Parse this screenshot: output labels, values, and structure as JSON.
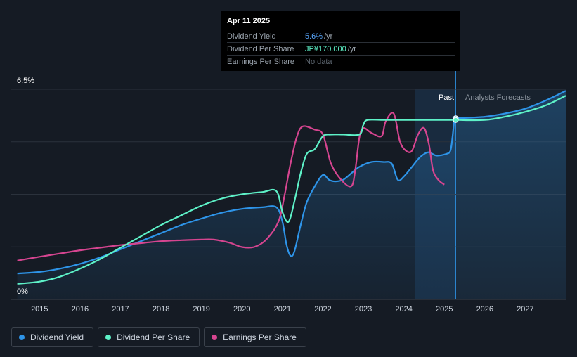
{
  "tooltip": {
    "date": "Apr 11 2025",
    "rows": [
      {
        "label": "Dividend Yield",
        "value": "5.6%",
        "unit": "/yr"
      },
      {
        "label": "Dividend Per Share",
        "value": "JP¥170.000",
        "unit": "/yr"
      },
      {
        "label": "Earnings Per Share",
        "value": "No data",
        "unit": ""
      }
    ]
  },
  "regions": {
    "past_label": "Past",
    "forecast_label": "Analysts Forecasts"
  },
  "legend": [
    {
      "label": "Dividend Yield",
      "color": "#2e94e8"
    },
    {
      "label": "Dividend Per Share",
      "color": "#5ef2c8"
    },
    {
      "label": "Earnings Per Share",
      "color": "#d64590"
    }
  ],
  "chart_data": {
    "type": "line",
    "x_ticks": [
      "2015",
      "2016",
      "2017",
      "2018",
      "2019",
      "2020",
      "2021",
      "2022",
      "2023",
      "2024",
      "2025",
      "2026",
      "2027"
    ],
    "y_tick_labels": [
      "0%",
      "6.5%"
    ],
    "ylim": [
      0,
      6.5
    ],
    "xlim": [
      2014.3,
      2028.0
    ],
    "past_range": [
      2024.28,
      2025.28
    ],
    "today": 2025.28,
    "grid": true,
    "legend_position": "bottom-left",
    "series": [
      {
        "name": "Dividend Yield",
        "color": "#2e94e8",
        "area": true,
        "points": [
          [
            2014.45,
            0.8
          ],
          [
            2015.0,
            0.85
          ],
          [
            2015.5,
            0.95
          ],
          [
            2016.0,
            1.1
          ],
          [
            2016.5,
            1.3
          ],
          [
            2017.0,
            1.55
          ],
          [
            2017.5,
            1.8
          ],
          [
            2018.0,
            2.05
          ],
          [
            2018.5,
            2.3
          ],
          [
            2019.0,
            2.5
          ],
          [
            2019.5,
            2.68
          ],
          [
            2020.0,
            2.8
          ],
          [
            2020.5,
            2.85
          ],
          [
            2020.85,
            2.85
          ],
          [
            2021.0,
            2.4
          ],
          [
            2021.1,
            1.7
          ],
          [
            2021.2,
            1.35
          ],
          [
            2021.3,
            1.5
          ],
          [
            2021.45,
            2.3
          ],
          [
            2021.6,
            3.0
          ],
          [
            2021.8,
            3.5
          ],
          [
            2022.0,
            3.85
          ],
          [
            2022.15,
            3.7
          ],
          [
            2022.3,
            3.65
          ],
          [
            2022.5,
            3.7
          ],
          [
            2022.7,
            3.9
          ],
          [
            2022.9,
            4.1
          ],
          [
            2023.2,
            4.25
          ],
          [
            2023.5,
            4.25
          ],
          [
            2023.7,
            4.2
          ],
          [
            2023.85,
            3.7
          ],
          [
            2024.0,
            3.8
          ],
          [
            2024.2,
            4.1
          ],
          [
            2024.4,
            4.4
          ],
          [
            2024.6,
            4.55
          ],
          [
            2024.8,
            4.45
          ],
          [
            2025.05,
            4.5
          ],
          [
            2025.15,
            4.6
          ],
          [
            2025.2,
            5.0
          ],
          [
            2025.25,
            5.6
          ],
          [
            2025.28,
            5.6
          ],
          [
            2026.0,
            5.65
          ],
          [
            2026.5,
            5.75
          ],
          [
            2027.0,
            5.9
          ],
          [
            2027.5,
            6.15
          ],
          [
            2028.0,
            6.45
          ]
        ]
      },
      {
        "name": "Dividend Per Share",
        "color": "#5ef2c8",
        "area": false,
        "points": [
          [
            2014.45,
            0.48
          ],
          [
            2015.0,
            0.55
          ],
          [
            2015.5,
            0.7
          ],
          [
            2016.0,
            0.95
          ],
          [
            2016.5,
            1.25
          ],
          [
            2017.0,
            1.6
          ],
          [
            2017.5,
            1.95
          ],
          [
            2018.0,
            2.3
          ],
          [
            2018.5,
            2.6
          ],
          [
            2019.0,
            2.9
          ],
          [
            2019.5,
            3.12
          ],
          [
            2020.0,
            3.25
          ],
          [
            2020.5,
            3.32
          ],
          [
            2020.85,
            3.35
          ],
          [
            2021.0,
            2.7
          ],
          [
            2021.15,
            2.4
          ],
          [
            2021.3,
            3.05
          ],
          [
            2021.45,
            3.9
          ],
          [
            2021.6,
            4.5
          ],
          [
            2021.8,
            4.65
          ],
          [
            2022.0,
            5.05
          ],
          [
            2022.2,
            5.1
          ],
          [
            2022.5,
            5.1
          ],
          [
            2022.9,
            5.1
          ],
          [
            2023.0,
            5.4
          ],
          [
            2023.1,
            5.55
          ],
          [
            2023.5,
            5.55
          ],
          [
            2024.0,
            5.55
          ],
          [
            2024.5,
            5.55
          ],
          [
            2025.0,
            5.55
          ],
          [
            2025.28,
            5.55
          ],
          [
            2026.0,
            5.55
          ],
          [
            2026.5,
            5.65
          ],
          [
            2027.0,
            5.8
          ],
          [
            2027.5,
            6.0
          ],
          [
            2028.0,
            6.3
          ]
        ]
      },
      {
        "name": "Earnings Per Share",
        "color": "#d64590",
        "area": false,
        "points": [
          [
            2014.45,
            1.2
          ],
          [
            2015.0,
            1.32
          ],
          [
            2015.5,
            1.42
          ],
          [
            2016.0,
            1.52
          ],
          [
            2016.5,
            1.6
          ],
          [
            2017.0,
            1.68
          ],
          [
            2017.5,
            1.74
          ],
          [
            2018.0,
            1.8
          ],
          [
            2018.5,
            1.83
          ],
          [
            2019.0,
            1.85
          ],
          [
            2019.3,
            1.85
          ],
          [
            2019.7,
            1.75
          ],
          [
            2020.0,
            1.62
          ],
          [
            2020.3,
            1.62
          ],
          [
            2020.6,
            1.85
          ],
          [
            2020.9,
            2.4
          ],
          [
            2021.05,
            3.2
          ],
          [
            2021.2,
            4.2
          ],
          [
            2021.35,
            5.0
          ],
          [
            2021.5,
            5.35
          ],
          [
            2021.8,
            5.25
          ],
          [
            2022.0,
            5.1
          ],
          [
            2022.2,
            4.2
          ],
          [
            2022.45,
            3.7
          ],
          [
            2022.7,
            3.5
          ],
          [
            2022.8,
            4.0
          ],
          [
            2022.9,
            5.0
          ],
          [
            2023.0,
            5.3
          ],
          [
            2023.2,
            5.15
          ],
          [
            2023.45,
            5.05
          ],
          [
            2023.55,
            5.5
          ],
          [
            2023.75,
            5.75
          ],
          [
            2023.9,
            4.9
          ],
          [
            2024.05,
            4.6
          ],
          [
            2024.2,
            4.6
          ],
          [
            2024.35,
            5.1
          ],
          [
            2024.5,
            5.3
          ],
          [
            2024.62,
            4.8
          ],
          [
            2024.72,
            4.0
          ],
          [
            2024.85,
            3.7
          ],
          [
            2025.0,
            3.55
          ]
        ]
      }
    ]
  }
}
